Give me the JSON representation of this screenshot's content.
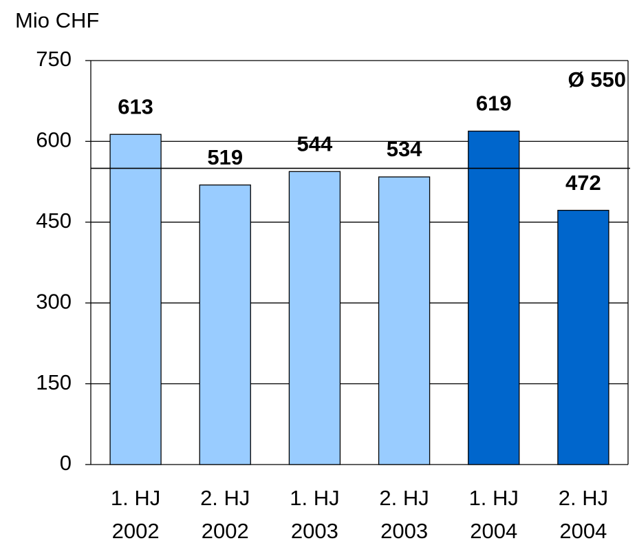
{
  "chart_data": {
    "type": "bar",
    "y_axis_label": "Mio CHF",
    "categories": [
      [
        "1. HJ",
        "2002"
      ],
      [
        "2. HJ",
        "2002"
      ],
      [
        "1. HJ",
        "2003"
      ],
      [
        "2. HJ",
        "2003"
      ],
      [
        "1. HJ",
        "2004"
      ],
      [
        "2. HJ",
        "2004"
      ]
    ],
    "values": [
      613,
      519,
      544,
      534,
      619,
      472
    ],
    "colors": [
      "#99ccff",
      "#99ccff",
      "#99ccff",
      "#99ccff",
      "#0066cc",
      "#0066cc"
    ],
    "average": {
      "value": 550,
      "label": "Ø 550"
    },
    "ylim": [
      0,
      750
    ],
    "yticks": [
      0,
      150,
      300,
      450,
      600,
      750
    ],
    "grid": true
  }
}
